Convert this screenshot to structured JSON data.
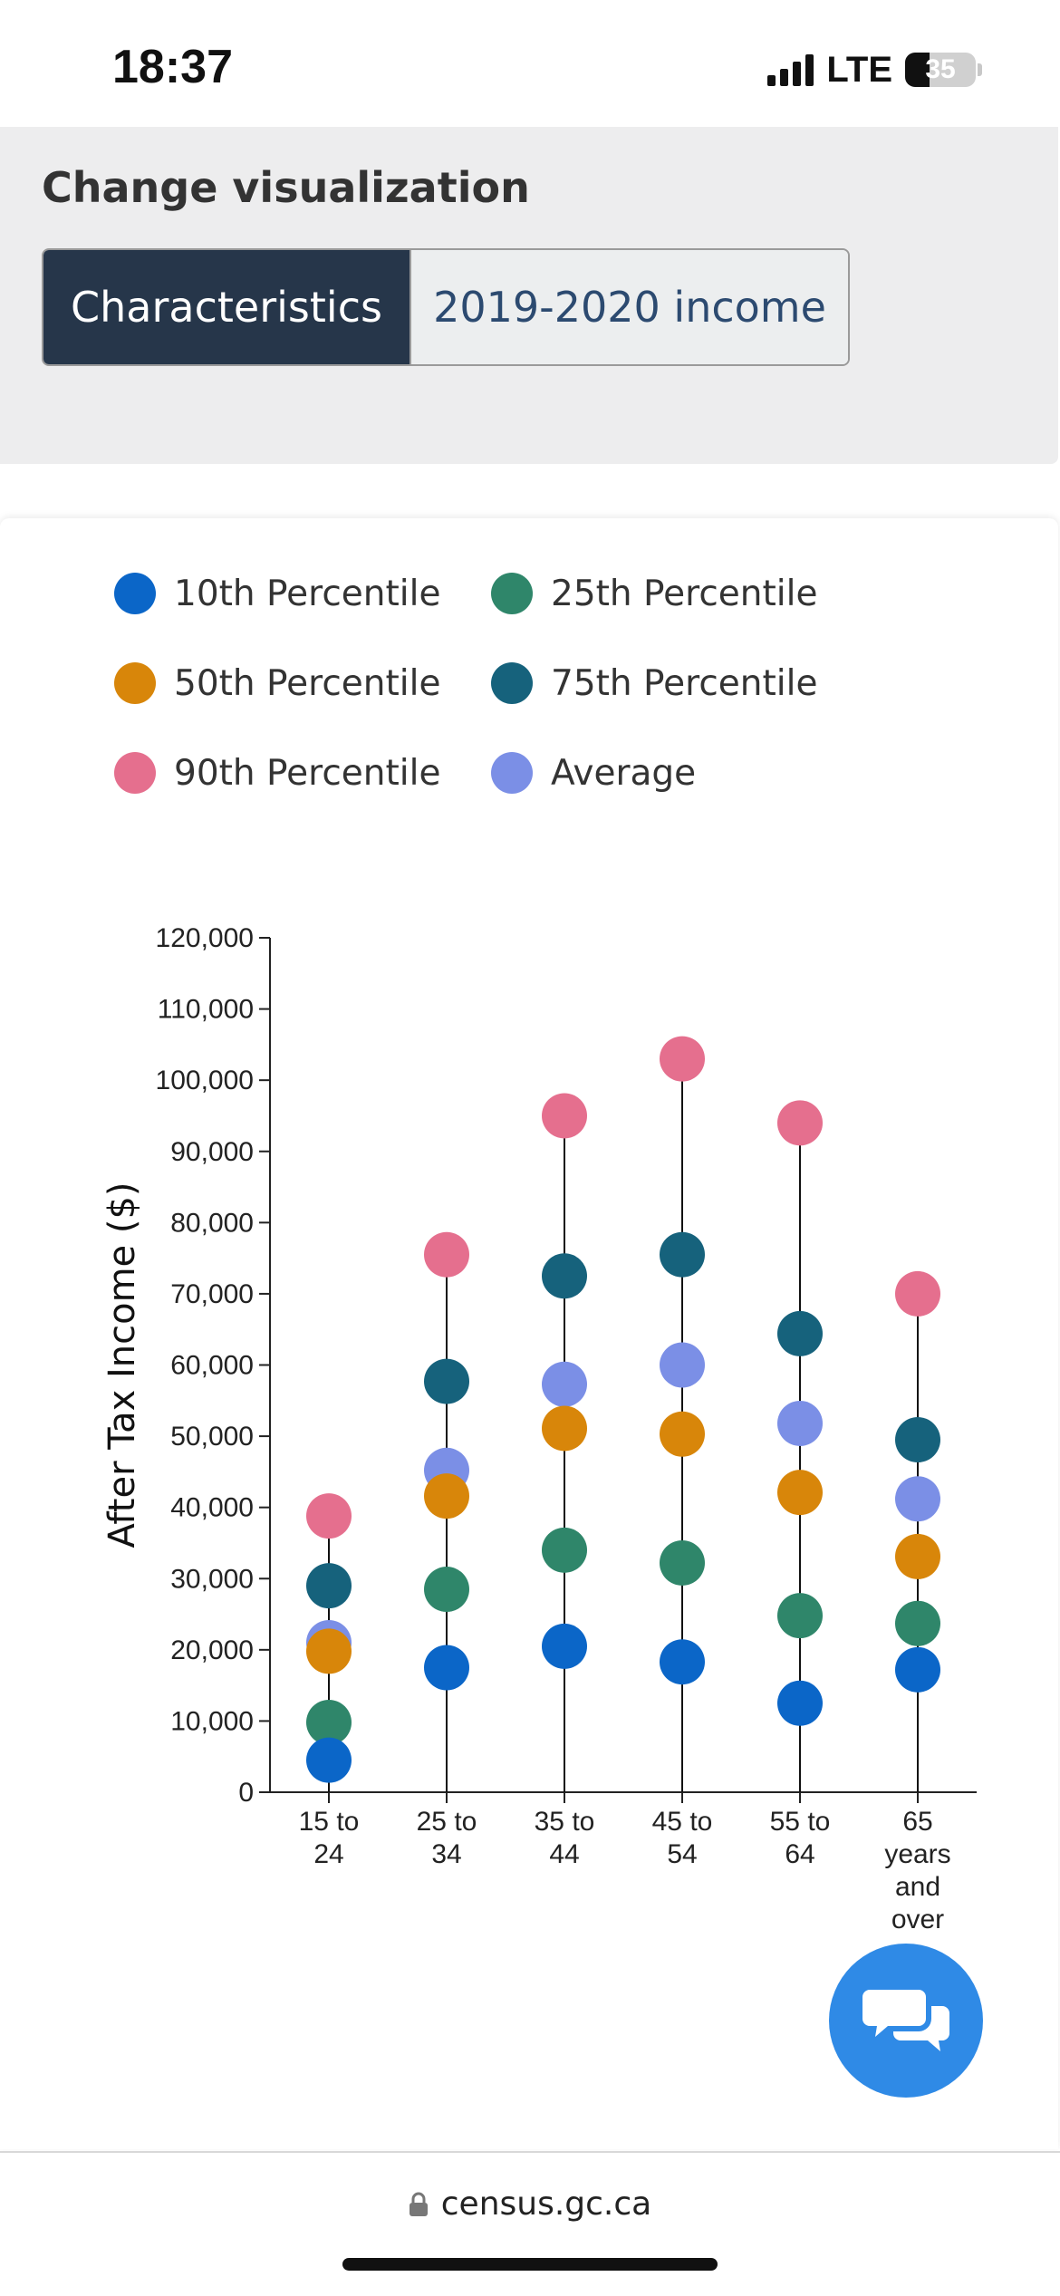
{
  "status_bar": {
    "time": "18:37",
    "network": "LTE",
    "battery": "35"
  },
  "controls": {
    "title": "Change visualization",
    "tabs": [
      {
        "label": "Characteristics",
        "active": true
      },
      {
        "label": "2019-2020 income",
        "active": false
      }
    ]
  },
  "colors": {
    "p10": "#0b66c8",
    "p25": "#2f866a",
    "p50": "#d8860a",
    "p75": "#16627c",
    "p90": "#e56f8e",
    "avg": "#7b8fe6"
  },
  "icons": {
    "chat": "chat-bubbles-icon",
    "lock": "lock-icon"
  },
  "chart_data": {
    "type": "scatter",
    "title": "",
    "ylabel": "After Tax Income ($)",
    "xlabel": "",
    "ylim": [
      0,
      120000
    ],
    "yticks": [
      "0",
      "10,000",
      "20,000",
      "30,000",
      "40,000",
      "50,000",
      "60,000",
      "70,000",
      "80,000",
      "90,000",
      "100,000",
      "110,000",
      "120,000"
    ],
    "categories": [
      [
        "15 to",
        "24"
      ],
      [
        "25 to",
        "34"
      ],
      [
        "35 to",
        "44"
      ],
      [
        "45 to",
        "54"
      ],
      [
        "55 to",
        "64"
      ],
      [
        "65",
        "years",
        "and",
        "over"
      ]
    ],
    "legend_position": "top",
    "series": [
      {
        "name": "10th Percentile",
        "key": "p10",
        "values": [
          4500,
          17500,
          20500,
          18300,
          12500,
          17200
        ]
      },
      {
        "name": "25th Percentile",
        "key": "p25",
        "values": [
          9800,
          28500,
          34000,
          32200,
          24800,
          23700
        ]
      },
      {
        "name": "50th Percentile",
        "key": "p50",
        "values": [
          19800,
          41600,
          51100,
          50300,
          42100,
          33100
        ]
      },
      {
        "name": "75th Percentile",
        "key": "p75",
        "values": [
          29000,
          57700,
          72500,
          75500,
          64400,
          49500
        ]
      },
      {
        "name": "90th Percentile",
        "key": "p90",
        "values": [
          38800,
          75500,
          95000,
          103000,
          94000,
          70000
        ]
      },
      {
        "name": "Average",
        "key": "avg",
        "values": [
          21000,
          45200,
          57300,
          60000,
          51800,
          41200
        ]
      }
    ]
  },
  "footer": {
    "url": "census.gc.ca"
  }
}
